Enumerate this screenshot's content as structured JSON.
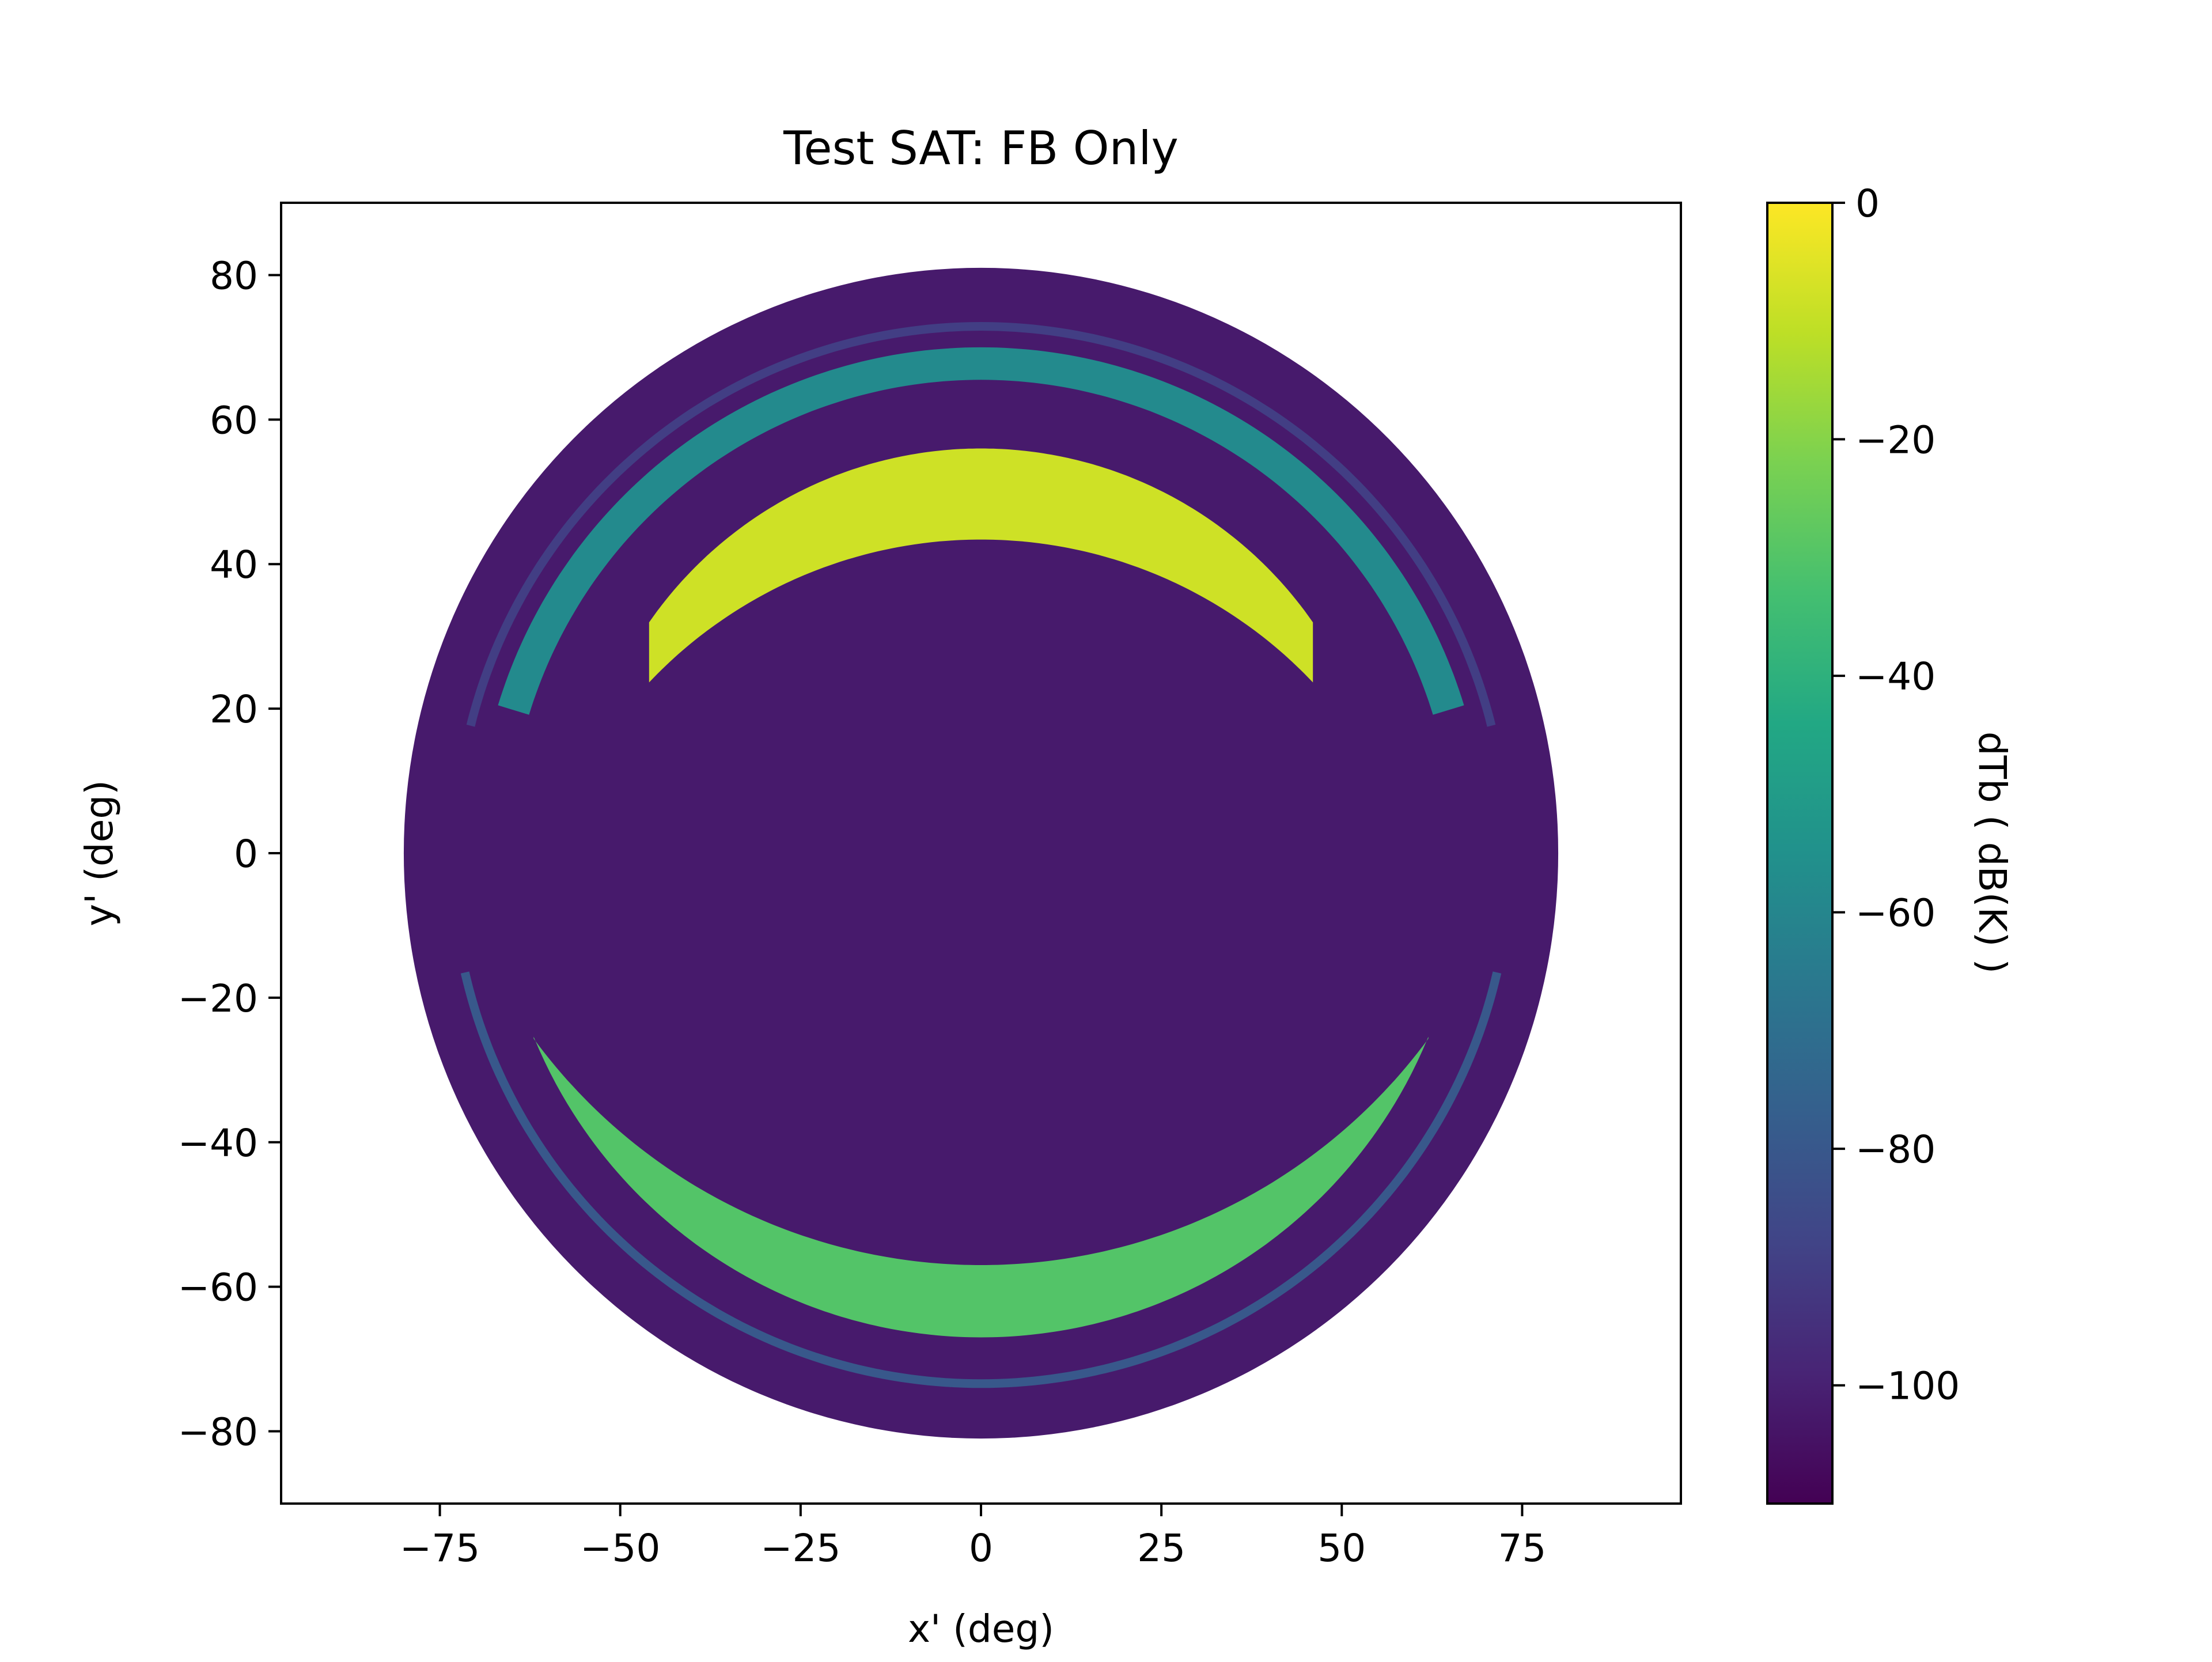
{
  "chart_data": {
    "type": "heatmap",
    "title": "Test SAT: FB Only",
    "xlabel": "x' (deg)",
    "ylabel": "y' (deg)",
    "xlim": [
      -97,
      97
    ],
    "ylim": [
      -90,
      90
    ],
    "x_ticks": [
      -75,
      -50,
      -25,
      0,
      25,
      50,
      75
    ],
    "x_tick_labels": [
      "−75",
      "−50",
      "−25",
      "0",
      "25",
      "50",
      "75"
    ],
    "y_ticks": [
      80,
      60,
      40,
      20,
      0,
      -20,
      -40,
      -60,
      -80
    ],
    "y_tick_labels": [
      "80",
      "60",
      "40",
      "20",
      "0",
      "−20",
      "−40",
      "−60",
      "−80"
    ],
    "grid": false,
    "colorbar": {
      "label": "dTb ( dB(K) )",
      "colormap": "viridis",
      "range": [
        -110,
        0
      ],
      "ticks": [
        0,
        -20,
        -40,
        -60,
        -80,
        -100
      ],
      "tick_labels": [
        "0",
        "−20",
        "−40",
        "−60",
        "−80",
        "−100"
      ]
    },
    "regions": [
      {
        "name": "background disk",
        "shape": "disk",
        "center": [
          0,
          0
        ],
        "radius_x": 80,
        "radius_y": 81,
        "value": -102
      },
      {
        "name": "upper outer ring",
        "shape": "ring-band",
        "center_y": 0,
        "radius_outer": 73.5,
        "radius_inner": 72.3,
        "value": -90,
        "angle_range_deg": [
          14,
          166
        ]
      },
      {
        "name": "upper mid band",
        "shape": "arc-band",
        "center_y": 0,
        "radius_outer": 70,
        "radius_inner": 65.5,
        "value": -58,
        "angle_range_deg": [
          17,
          163
        ]
      },
      {
        "name": "upper crescent",
        "shape": "crescent",
        "outer_center_y": 0,
        "outer_radius": 56,
        "inner_center_y": -20,
        "inner_radius": 63.4,
        "x_range": [
          -46,
          46
        ],
        "value": -8
      },
      {
        "name": "lower outer ring",
        "shape": "ring-band",
        "center_y": 0,
        "radius_outer": 74,
        "radius_inner": 72.8,
        "value": -80,
        "angle_range_deg": [
          193,
          347
        ]
      },
      {
        "name": "lower crescent",
        "shape": "crescent",
        "outer_center_y": 0,
        "outer_radius": 67,
        "inner_center_y": 20,
        "inner_radius": 77,
        "x_range": [
          -62,
          62
        ],
        "value": -30
      }
    ]
  }
}
